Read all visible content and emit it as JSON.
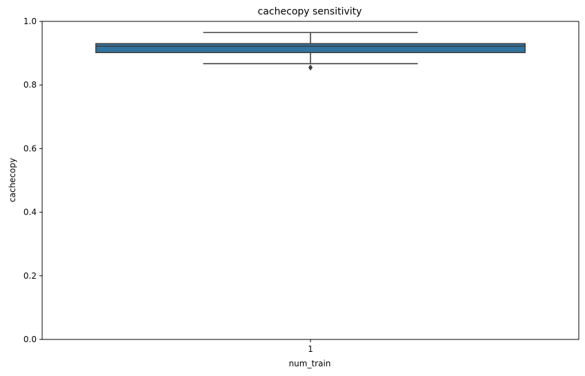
{
  "chart_data": {
    "type": "box",
    "title": "cachecopy sensitivity",
    "xlabel": "num_train",
    "ylabel": "cachecopy",
    "categories": [
      "1"
    ],
    "ylim": [
      0,
      1.0
    ],
    "yticks": [
      "0.0",
      "0.2",
      "0.4",
      "0.6",
      "0.8",
      "1.0"
    ],
    "boxes": [
      {
        "category": "1",
        "whisker_low": 0.867,
        "q1": 0.902,
        "median": 0.922,
        "q3": 0.93,
        "whisker_high": 0.965,
        "outliers": [
          0.855
        ]
      }
    ],
    "colors": {
      "box_fill": "#3274a1",
      "line": "#3f3f3f"
    },
    "grid": false,
    "legend": "none"
  }
}
